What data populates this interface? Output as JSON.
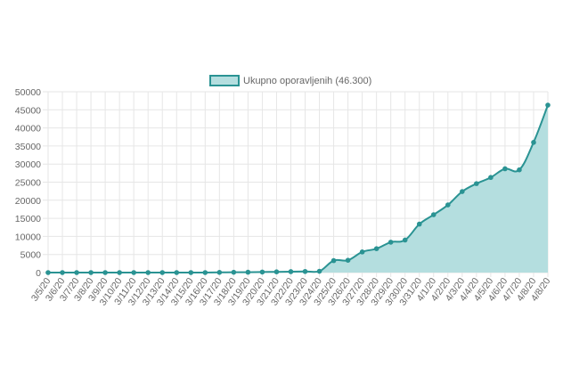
{
  "chart_data": {
    "type": "area",
    "title": "",
    "xlabel": "",
    "ylabel": "",
    "legend": {
      "position": "top",
      "label": "Ukupno oporavljenih (46.300)"
    },
    "series": [
      {
        "name": "Ukupno oporavljenih (46.300)",
        "values": [
          0,
          0,
          0,
          0,
          0,
          0,
          0,
          0,
          0,
          0,
          0,
          0,
          50,
          80,
          100,
          150,
          200,
          250,
          300,
          350,
          3300,
          3400,
          5700,
          6600,
          8400,
          9000,
          13400,
          16000,
          18700,
          22400,
          24600,
          26300,
          28700,
          28400,
          36000,
          46300
        ]
      }
    ],
    "categories": [
      "3/5/20",
      "3/6/20",
      "3/7/20",
      "3/8/20",
      "3/9/20",
      "3/10/20",
      "3/11/20",
      "3/12/20",
      "3/13/20",
      "3/14/20",
      "3/15/20",
      "3/16/20",
      "3/17/20",
      "3/18/20",
      "3/19/20",
      "3/20/20",
      "3/21/20",
      "3/22/20",
      "3/23/20",
      "3/24/20",
      "3/25/20",
      "3/26/20",
      "3/27/20",
      "3/28/20",
      "3/29/20",
      "3/30/20",
      "3/31/20",
      "4/1/20",
      "4/2/20",
      "4/3/20",
      "4/4/20",
      "4/5/20",
      "4/6/20",
      "4/7/20",
      "4/8/20",
      "4/8/20"
    ],
    "ylim": [
      0,
      50000
    ],
    "yticks": [
      "0",
      "5000",
      "10000",
      "15000",
      "20000",
      "25000",
      "30000",
      "35000",
      "40000",
      "45000",
      "50000"
    ],
    "grid": true,
    "colors": {
      "line": "#2a9393",
      "fill": "#b4dedf",
      "grid": "#e6e6e6",
      "text": "#666666"
    }
  }
}
